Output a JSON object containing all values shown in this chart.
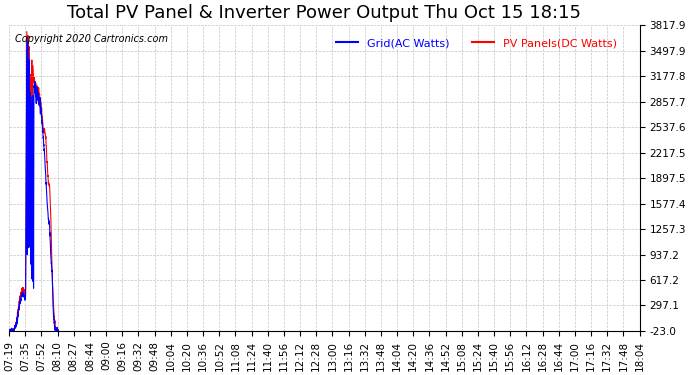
{
  "title": "Total PV Panel & Inverter Power Output Thu Oct 15 18:15",
  "copyright": "Copyright 2020 Cartronics.com",
  "legend_blue": "Grid(AC Watts)",
  "legend_red": "PV Panels(DC Watts)",
  "yticks": [
    3817.9,
    3497.9,
    3177.8,
    2857.7,
    2537.6,
    2217.5,
    1897.5,
    1577.4,
    1257.3,
    937.2,
    617.2,
    297.1,
    -23.0
  ],
  "ymin": -23.0,
  "ymax": 3817.9,
  "bg_color": "#ffffff",
  "grid_color": "#aaaaaa",
  "blue_color": "blue",
  "red_color": "red",
  "title_fontsize": 13,
  "tick_fontsize": 7.5,
  "xtick_labels": [
    "07:19",
    "07:35",
    "07:52",
    "08:10",
    "08:27",
    "08:44",
    "09:00",
    "09:16",
    "09:32",
    "09:48",
    "10:04",
    "10:20",
    "10:36",
    "10:52",
    "11:08",
    "11:24",
    "11:40",
    "11:56",
    "12:12",
    "12:28",
    "13:00",
    "13:16",
    "13:32",
    "13:48",
    "14:04",
    "14:20",
    "14:36",
    "14:52",
    "15:08",
    "15:24",
    "15:40",
    "15:56",
    "16:12",
    "16:28",
    "16:44",
    "17:00",
    "17:16",
    "17:32",
    "17:48",
    "18:04"
  ]
}
